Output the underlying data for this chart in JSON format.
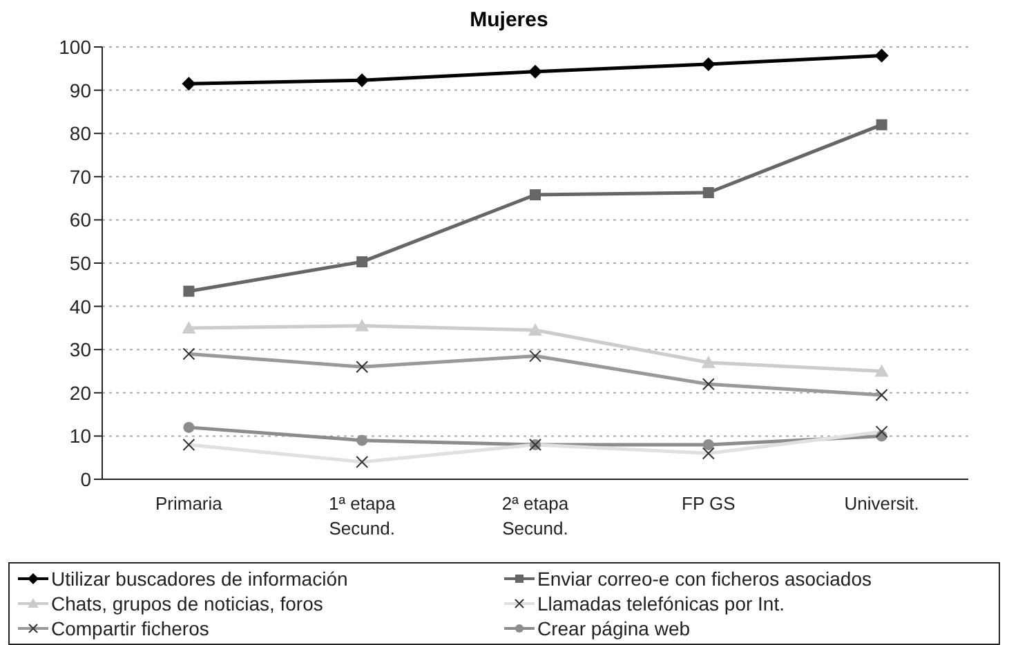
{
  "chart_data": {
    "type": "line",
    "title": "Mujeres",
    "categories": [
      "Primaria",
      "1ª etapa\nSecund.",
      "2ª etapa\nSecund.",
      "FP GS",
      "Universit."
    ],
    "series": [
      {
        "name": "Utilizar buscadores de información",
        "color": "#000000",
        "marker": "diamond",
        "values": [
          91.5,
          92.3,
          94.3,
          96,
          98
        ]
      },
      {
        "name": "Enviar correo-e con ficheros asociados",
        "color": "#666666",
        "marker": "square",
        "values": [
          43.5,
          50.3,
          65.8,
          66.3,
          82
        ]
      },
      {
        "name": "Chats, grupos de noticias, foros",
        "color": "#cccccc",
        "marker": "triangle",
        "values": [
          35,
          35.5,
          34.5,
          27,
          25
        ]
      },
      {
        "name": "Llamadas telefónicas por Int.",
        "color": "#e0e0e0",
        "marker": "cross",
        "values": [
          8,
          4,
          8,
          6,
          11
        ]
      },
      {
        "name": "Compartir ficheros",
        "color": "#999999",
        "marker": "cross",
        "values": [
          29,
          26,
          28.5,
          22,
          19.5
        ]
      },
      {
        "name": "Crear  página web",
        "color": "#8c8c8c",
        "marker": "circle",
        "values": [
          12,
          9,
          8,
          8,
          10
        ]
      }
    ],
    "ylim": [
      0,
      100
    ],
    "yticks": [
      0,
      10,
      20,
      30,
      40,
      50,
      60,
      70,
      80,
      90,
      100
    ],
    "grid": "y",
    "legend": "bottom",
    "line_style": "solid"
  }
}
